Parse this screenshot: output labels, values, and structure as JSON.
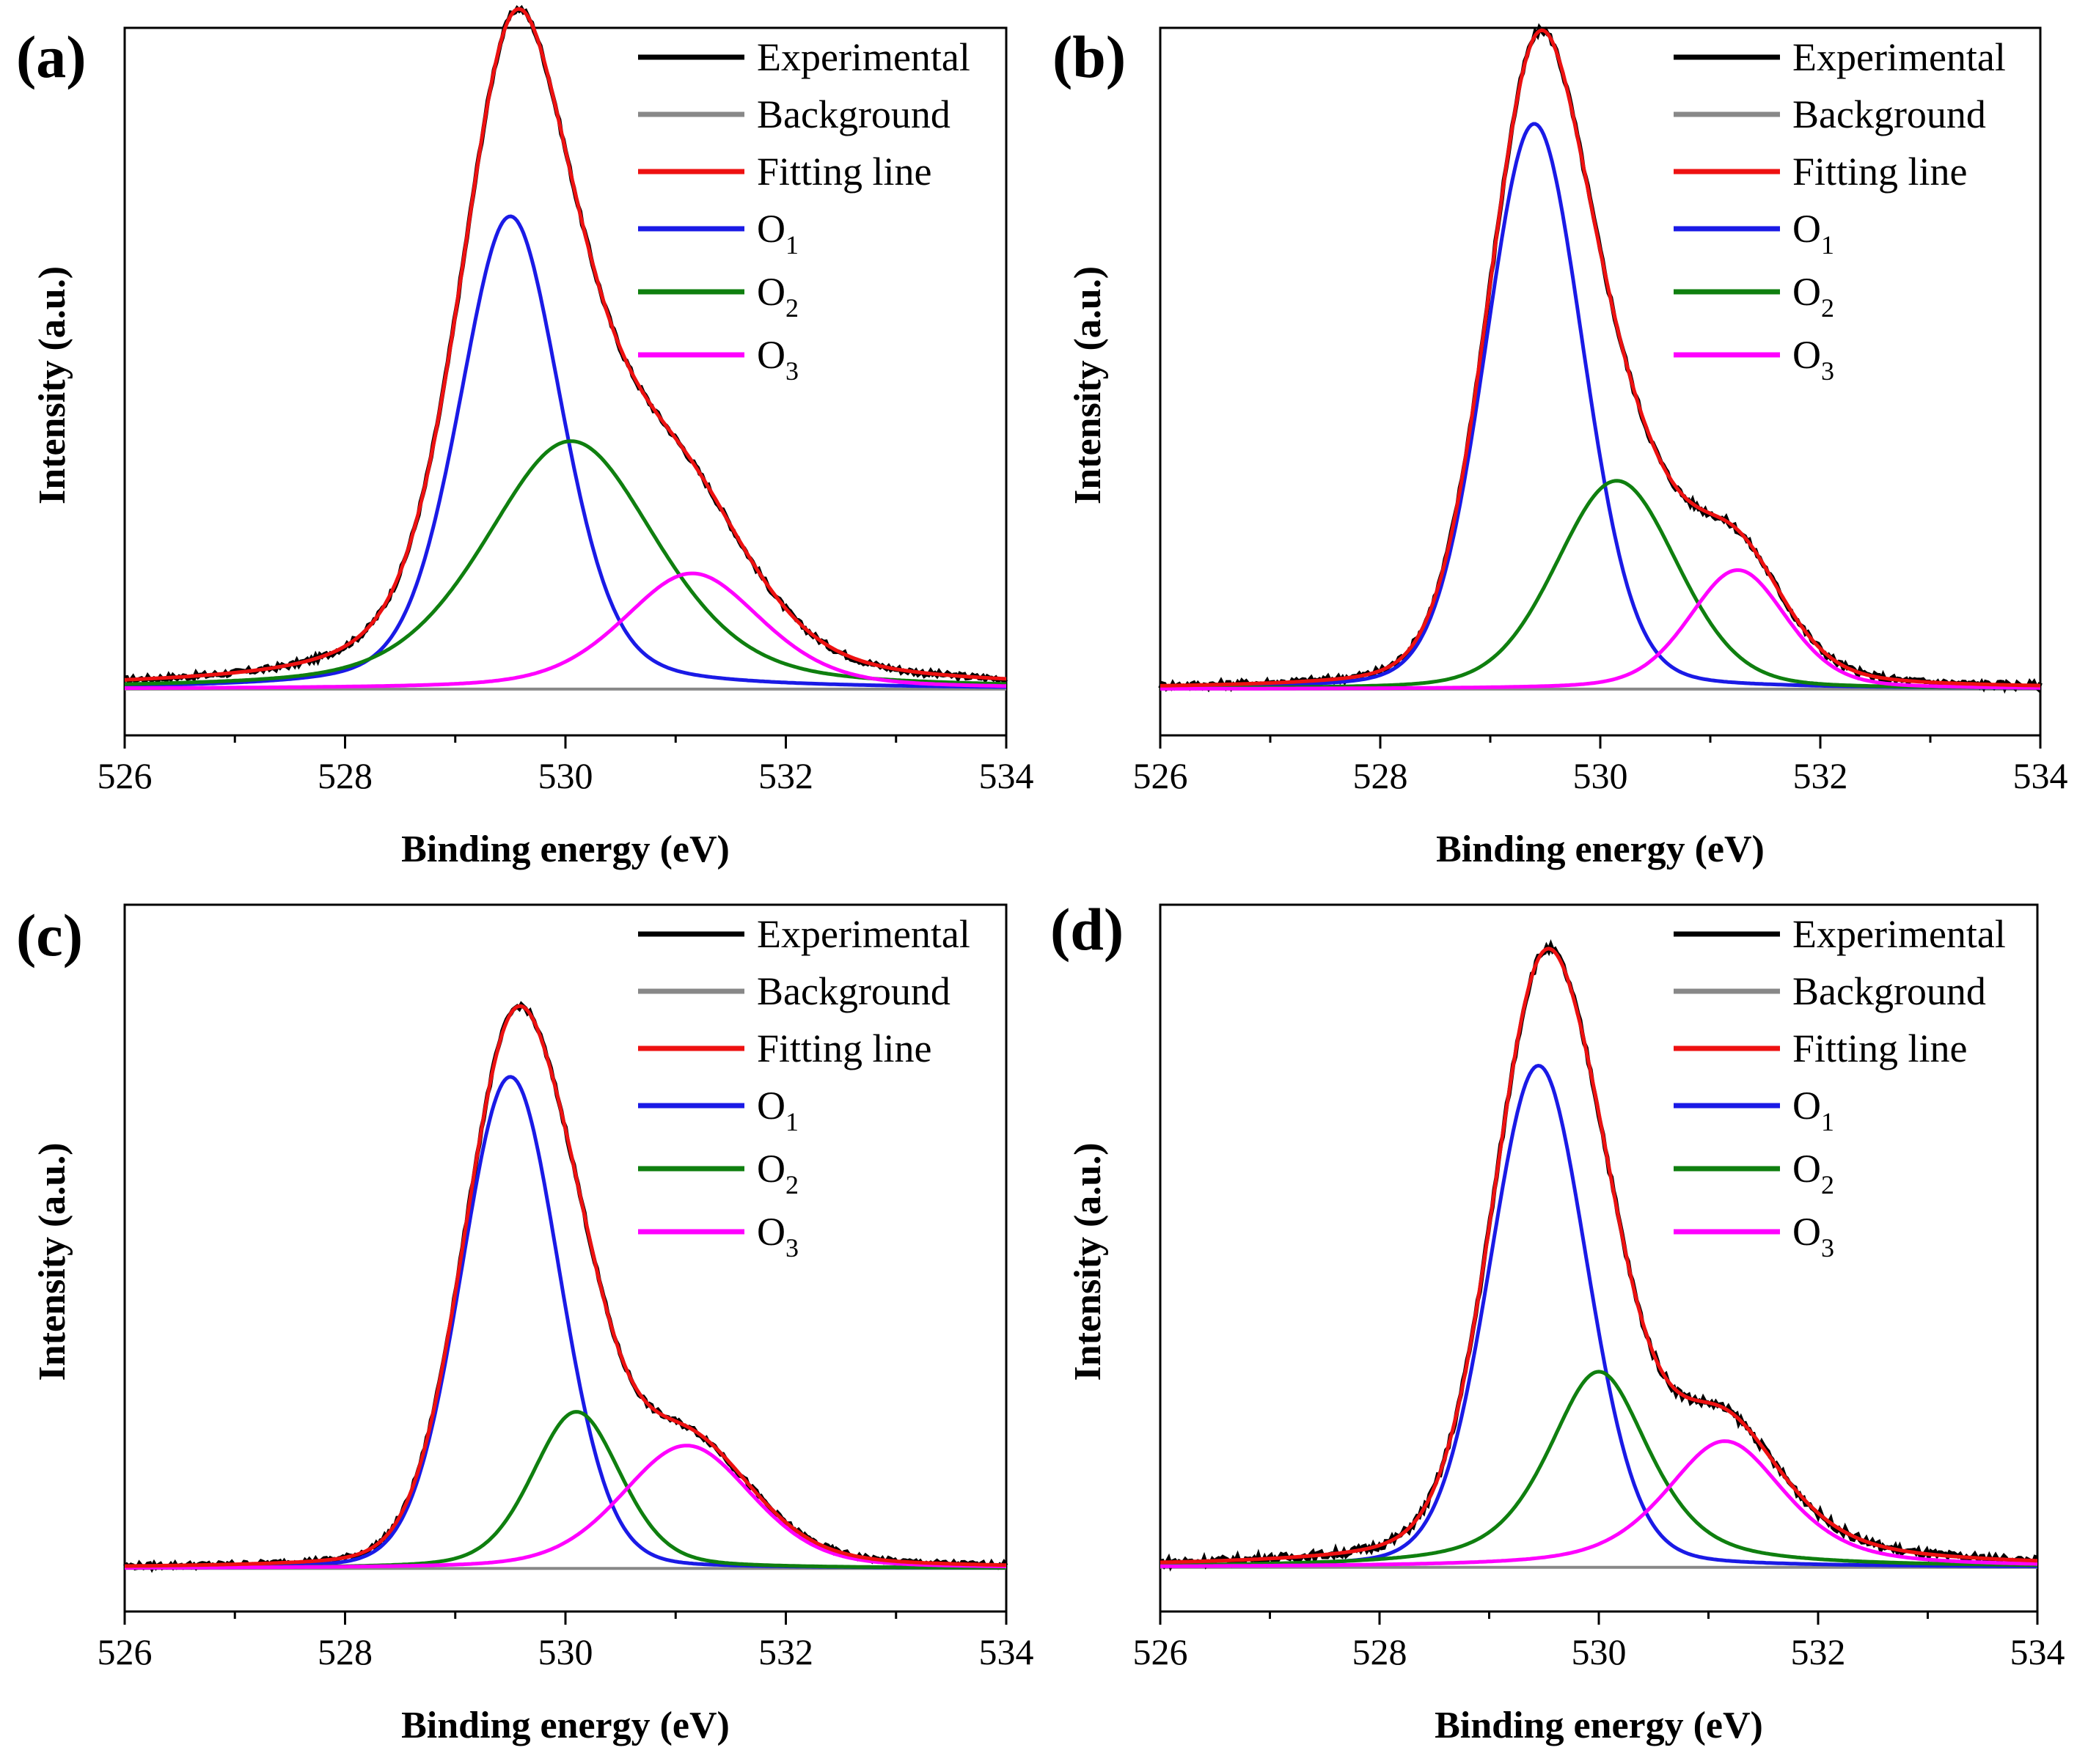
{
  "colors": {
    "Experimental": "#000000",
    "Background": "#888888",
    "Fitting line": "#ee1111",
    "O1": "#1a1ae6",
    "O2": "#0f7f0f",
    "O3": "#ff00ff"
  },
  "chart_data": [
    {
      "panel": "(a)",
      "type": "line",
      "xlabel": "Binding energy (eV)",
      "ylabel": "Intensity (a.u.)",
      "xlim": [
        526,
        534
      ],
      "ylim": [
        -0.07,
        1.0
      ],
      "xticks": [
        526,
        528,
        530,
        532,
        534
      ],
      "legend": [
        {
          "key": "Experimental",
          "label": "Experimental",
          "sub": ""
        },
        {
          "key": "Background",
          "label": "Background",
          "sub": ""
        },
        {
          "key": "Fitting line",
          "label": "Fitting line",
          "sub": ""
        },
        {
          "key": "O1",
          "label": "O",
          "sub": "1"
        },
        {
          "key": "O2",
          "label": "O",
          "sub": "2"
        },
        {
          "key": "O3",
          "label": "O",
          "sub": "3"
        }
      ],
      "peaks": [
        {
          "name": "O1",
          "center": 529.5,
          "height": 0.715,
          "fwhm": 1.1,
          "eta": 0.3
        },
        {
          "name": "O2",
          "center": 530.05,
          "height": 0.375,
          "fwhm": 1.85,
          "eta": 0.4
        },
        {
          "name": "O3",
          "center": 531.15,
          "height": 0.175,
          "fwhm": 1.5,
          "eta": 0.4
        }
      ],
      "background": 0.0,
      "noise": 0.004
    },
    {
      "panel": "(b)",
      "type": "line",
      "xlabel": "Binding energy (eV)",
      "ylabel": "Intensity (a.u.)",
      "xlim": [
        526,
        534
      ],
      "ylim": [
        -0.07,
        1.0
      ],
      "xticks": [
        526,
        528,
        530,
        532,
        534
      ],
      "legend": [
        {
          "key": "Experimental",
          "label": "Experimental",
          "sub": ""
        },
        {
          "key": "Background",
          "label": "Background",
          "sub": ""
        },
        {
          "key": "Fitting line",
          "label": "Fitting line",
          "sub": ""
        },
        {
          "key": "O1",
          "label": "O",
          "sub": "1"
        },
        {
          "key": "O2",
          "label": "O",
          "sub": "2"
        },
        {
          "key": "O3",
          "label": "O",
          "sub": "3"
        }
      ],
      "peaks": [
        {
          "name": "O1",
          "center": 529.4,
          "height": 0.855,
          "fwhm": 1.05,
          "eta": 0.15
        },
        {
          "name": "O2",
          "center": 530.15,
          "height": 0.315,
          "fwhm": 1.3,
          "eta": 0.2
        },
        {
          "name": "O3",
          "center": 531.25,
          "height": 0.18,
          "fwhm": 1.05,
          "eta": 0.3
        }
      ],
      "background": 0.0,
      "noise": 0.005
    },
    {
      "panel": "(c)",
      "type": "line",
      "xlabel": "Binding energy (eV)",
      "ylabel": "Intensity (a.u.)",
      "xlim": [
        526,
        534
      ],
      "ylim": [
        -0.07,
        1.08
      ],
      "xticks": [
        526,
        528,
        530,
        532,
        534
      ],
      "legend": [
        {
          "key": "Experimental",
          "label": "Experimental",
          "sub": ""
        },
        {
          "key": "Background",
          "label": "Background",
          "sub": ""
        },
        {
          "key": "Fitting line",
          "label": "Fitting line",
          "sub": ""
        },
        {
          "key": "O1",
          "label": "O",
          "sub": "1"
        },
        {
          "key": "O2",
          "label": "O",
          "sub": "2"
        },
        {
          "key": "O3",
          "label": "O",
          "sub": "3"
        }
      ],
      "peaks": [
        {
          "name": "O1",
          "center": 529.5,
          "height": 0.8,
          "fwhm": 1.05,
          "eta": 0.1
        },
        {
          "name": "O2",
          "center": 530.1,
          "height": 0.255,
          "fwhm": 0.95,
          "eta": 0.3
        },
        {
          "name": "O3",
          "center": 531.1,
          "height": 0.2,
          "fwhm": 1.4,
          "eta": 0.3
        }
      ],
      "background": 0.0,
      "noise": 0.004
    },
    {
      "panel": "(d)",
      "type": "line",
      "xlabel": "Binding energy (eV)",
      "ylabel": "Intensity (a.u.)",
      "xlim": [
        526,
        534
      ],
      "ylim": [
        -0.07,
        1.05
      ],
      "xticks": [
        526,
        528,
        530,
        532,
        534
      ],
      "legend": [
        {
          "key": "Experimental",
          "label": "Experimental",
          "sub": ""
        },
        {
          "key": "Background",
          "label": "Background",
          "sub": ""
        },
        {
          "key": "Fitting line",
          "label": "Fitting line",
          "sub": ""
        },
        {
          "key": "O1",
          "label": "O",
          "sub": "1"
        },
        {
          "key": "O2",
          "label": "O",
          "sub": "2"
        },
        {
          "key": "O3",
          "label": "O",
          "sub": "3"
        }
      ],
      "peaks": [
        {
          "name": "O1",
          "center": 529.45,
          "height": 0.795,
          "fwhm": 1.05,
          "eta": 0.15
        },
        {
          "name": "O2",
          "center": 530.0,
          "height": 0.31,
          "fwhm": 1.1,
          "eta": 0.6
        },
        {
          "name": "O3",
          "center": 531.15,
          "height": 0.2,
          "fwhm": 1.3,
          "eta": 0.55
        }
      ],
      "background": 0.0,
      "noise": 0.006
    }
  ]
}
